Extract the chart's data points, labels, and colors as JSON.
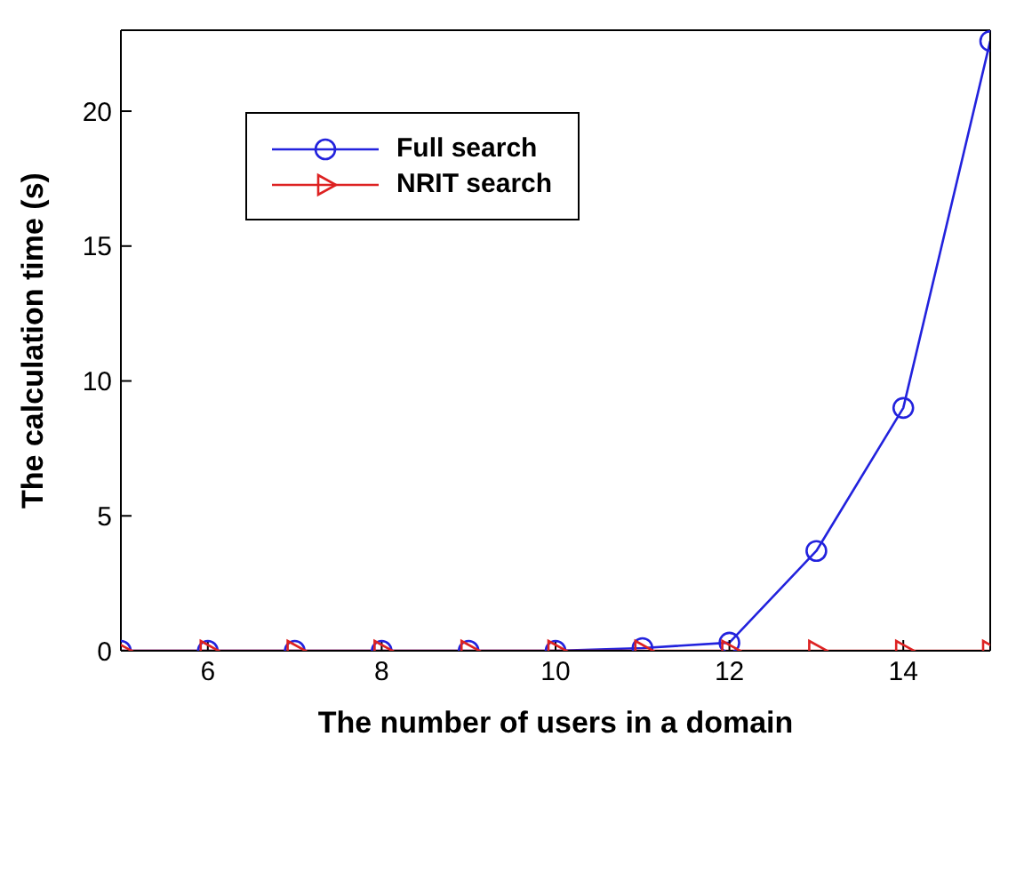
{
  "chart_data": {
    "type": "line",
    "xlabel": "The number of users in a domain",
    "ylabel": "The calculation time (s)",
    "x": [
      5,
      6,
      7,
      8,
      9,
      10,
      11,
      12,
      13,
      14,
      15
    ],
    "series": [
      {
        "name": "Full search",
        "color": "#2222dd",
        "marker": "circle",
        "values": [
          0,
          0,
          0,
          0,
          0,
          0,
          0.1,
          0.3,
          3.7,
          9.0,
          22.6
        ]
      },
      {
        "name": "NRIT search",
        "color": "#dd2222",
        "marker": "triangle",
        "values": [
          0,
          0,
          0,
          0,
          0,
          0,
          0,
          0,
          0,
          0,
          0
        ]
      }
    ],
    "xlim": [
      5,
      15
    ],
    "xticks": [
      6,
      8,
      10,
      12,
      14
    ],
    "ylim": [
      0,
      23
    ],
    "yticks": [
      0,
      5,
      10,
      15,
      20
    ],
    "grid": false,
    "legend": "top left",
    "line_style": "solid"
  }
}
